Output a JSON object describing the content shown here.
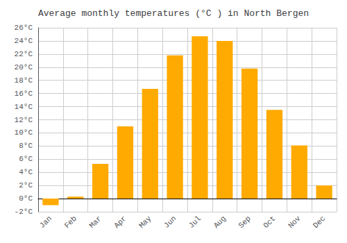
{
  "chart_data": {
    "type": "bar",
    "title": "Average monthly temperatures (°C ) in North Bergen",
    "categories": [
      "Jan",
      "Feb",
      "Mar",
      "Apr",
      "May",
      "Jun",
      "Jul",
      "Aug",
      "Sep",
      "Oct",
      "Nov",
      "Dec"
    ],
    "values": [
      -1.0,
      0.3,
      5.3,
      11.0,
      16.7,
      21.8,
      24.7,
      24.0,
      19.8,
      13.5,
      8.1,
      2.0
    ],
    "color": "#FFAA00",
    "ylim": [
      -2,
      26
    ],
    "yticks": [
      {
        "value": -2,
        "label": "-2°C"
      },
      {
        "value": 0,
        "label": "0°C"
      },
      {
        "value": 2,
        "label": "2°C"
      },
      {
        "value": 4,
        "label": "4°C"
      },
      {
        "value": 6,
        "label": "6°C"
      },
      {
        "value": 8,
        "label": "8°C"
      },
      {
        "value": 10,
        "label": "10°C"
      },
      {
        "value": 12,
        "label": "12°C"
      },
      {
        "value": 14,
        "label": "14°C"
      },
      {
        "value": 16,
        "label": "16°C"
      },
      {
        "value": 18,
        "label": "18°C"
      },
      {
        "value": 20,
        "label": "20°C"
      },
      {
        "value": 22,
        "label": "22°C"
      },
      {
        "value": 24,
        "label": "24°C"
      },
      {
        "value": 26,
        "label": "26°C"
      }
    ],
    "grid": true
  }
}
